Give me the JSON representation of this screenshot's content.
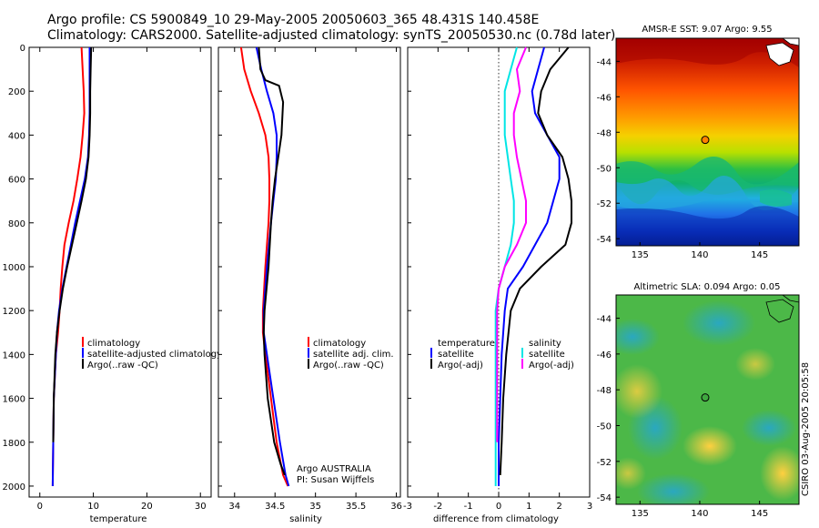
{
  "header": {
    "title1": "Argo profile: CS 5900849_10 29-May-2005 20050603_365 48.431S 140.458E",
    "title2": "Climatology: CARS2000. Satellite-adjusted climatology: synTS_20050530.nc (0.78d later)"
  },
  "credit": "CSIRO 03-Aug-2005 20:05:58",
  "chart_data": [
    {
      "type": "line",
      "id": "temperature",
      "xlabel": "temperature",
      "ylabel": "",
      "xlim": [
        -2,
        32
      ],
      "ylim": [
        2050,
        0
      ],
      "xticks": [
        0,
        10,
        20,
        30
      ],
      "yticks": [
        0,
        200,
        400,
        600,
        800,
        1000,
        1200,
        1400,
        1600,
        1800,
        2000
      ],
      "legend": [
        "climatology",
        "satellite-adjusted climatology",
        "Argo(..raw -QC)"
      ],
      "legend_position": "lower-right",
      "series": [
        {
          "name": "climatology",
          "color": "#ff0000",
          "x": [
            7.8,
            8.0,
            8.2,
            8.3,
            8.0,
            7.6,
            7.0,
            6.3,
            5.4,
            4.6,
            4.2,
            3.9,
            3.7,
            3.4,
            3.0,
            2.6,
            2.5,
            2.45,
            2.4
          ],
          "y": [
            0,
            100,
            200,
            300,
            400,
            500,
            600,
            700,
            800,
            900,
            1000,
            1100,
            1200,
            1300,
            1400,
            1600,
            1800,
            1900,
            2000
          ]
        },
        {
          "name": "satellite-adjusted climatology",
          "color": "#0000ff",
          "x": [
            9.3,
            9.3,
            9.3,
            9.3,
            9.2,
            9.0,
            8.4,
            7.5,
            6.6,
            5.8,
            5.0,
            4.2,
            3.6,
            3.2,
            3.0,
            2.6,
            2.5,
            2.45,
            2.4
          ],
          "y": [
            0,
            100,
            200,
            300,
            400,
            500,
            600,
            700,
            800,
            900,
            1000,
            1100,
            1200,
            1300,
            1400,
            1600,
            1800,
            1900,
            2000
          ]
        },
        {
          "name": "Argo(..raw -QC)",
          "color": "#000000",
          "x": [
            9.6,
            9.5,
            9.4,
            9.4,
            9.3,
            9.1,
            8.6,
            7.8,
            6.9,
            6.0,
            5.1,
            4.3,
            3.7,
            3.2,
            2.9,
            2.6,
            2.5
          ],
          "y": [
            0,
            100,
            200,
            300,
            400,
            500,
            600,
            700,
            800,
            900,
            1000,
            1100,
            1200,
            1300,
            1400,
            1600,
            1800
          ]
        }
      ]
    },
    {
      "type": "line",
      "id": "salinity",
      "xlabel": "salinity",
      "ylabel": "",
      "xlim": [
        33.8,
        36.05
      ],
      "ylim": [
        2050,
        0
      ],
      "xticks": [
        34,
        34.5,
        35,
        35.5,
        36
      ],
      "legend": [
        "climatology",
        "satellite adj. clim.",
        "Argo(..raw -QC)"
      ],
      "legend_position": "lower-right",
      "annotation": [
        "Argo AUSTRALIA",
        "PI: Susan Wijffels"
      ],
      "series": [
        {
          "name": "climatology",
          "color": "#ff0000",
          "x": [
            34.08,
            34.12,
            34.2,
            34.3,
            34.38,
            34.42,
            34.43,
            34.43,
            34.42,
            34.38,
            34.35,
            34.35,
            34.38,
            34.45,
            34.52,
            34.6,
            34.66
          ],
          "y": [
            0,
            100,
            200,
            300,
            400,
            500,
            600,
            700,
            800,
            1000,
            1200,
            1300,
            1400,
            1600,
            1800,
            1950,
            2000
          ]
        },
        {
          "name": "satellite adj. clim.",
          "color": "#0000ff",
          "x": [
            34.27,
            34.33,
            34.4,
            34.48,
            34.52,
            34.52,
            34.51,
            34.48,
            34.45,
            34.4,
            34.36,
            34.36,
            34.4,
            34.48,
            34.56,
            34.63,
            34.67
          ],
          "y": [
            0,
            100,
            200,
            300,
            400,
            500,
            600,
            700,
            800,
            1000,
            1200,
            1300,
            1400,
            1600,
            1800,
            1950,
            2000
          ]
        },
        {
          "name": "Argo(..raw -QC)",
          "color": "#000000",
          "x": [
            34.3,
            34.32,
            34.38,
            34.55,
            34.6,
            34.58,
            34.54,
            34.5,
            34.47,
            34.45,
            34.42,
            34.37,
            34.36,
            34.37,
            34.41,
            34.49,
            34.57,
            34.62
          ],
          "y": [
            0,
            100,
            150,
            175,
            250,
            400,
            500,
            600,
            700,
            800,
            1000,
            1200,
            1300,
            1400,
            1600,
            1800,
            1900,
            1950
          ]
        }
      ]
    },
    {
      "type": "line",
      "id": "difference",
      "xlabel": "difference from climatology",
      "ylabel": "",
      "xlim": [
        -3,
        3
      ],
      "ylim": [
        2050,
        0
      ],
      "xticks": [
        -3,
        -2,
        -1,
        0,
        1,
        2,
        3
      ],
      "legend_left_title": "temperature",
      "legend_left": [
        "satellite",
        "Argo(-adj)"
      ],
      "legend_right_title": "salinity",
      "legend_right": [
        "satellite",
        "Argo(-adj)"
      ],
      "series": [
        {
          "name": "satellite",
          "color": "#0000ff",
          "x": [
            1.5,
            1.3,
            1.1,
            1.2,
            1.6,
            2.0,
            2.0,
            1.8,
            1.6,
            1.2,
            0.8,
            0.3,
            0.2,
            0.1,
            0.05,
            0.0,
            0.0
          ],
          "y": [
            0,
            100,
            200,
            300,
            400,
            500,
            600,
            700,
            800,
            900,
            1000,
            1100,
            1200,
            1400,
            1600,
            1800,
            2000
          ]
        },
        {
          "name": "Argo(-adj)",
          "color": "#000000",
          "x": [
            2.3,
            1.7,
            1.4,
            1.3,
            1.6,
            2.1,
            2.3,
            2.4,
            2.4,
            2.2,
            1.4,
            0.7,
            0.4,
            0.25,
            0.15,
            0.1,
            0.05
          ],
          "y": [
            0,
            100,
            200,
            300,
            400,
            500,
            600,
            700,
            800,
            900,
            1000,
            1100,
            1200,
            1400,
            1600,
            1800,
            1950
          ]
        },
        {
          "name": "satellite",
          "color": "#00e5e5",
          "x": [
            0.6,
            0.4,
            0.2,
            0.2,
            0.2,
            0.3,
            0.4,
            0.5,
            0.5,
            0.4,
            0.2,
            0.0,
            -0.1,
            -0.1,
            -0.1,
            -0.1,
            -0.1
          ],
          "y": [
            0,
            100,
            200,
            300,
            400,
            500,
            600,
            700,
            800,
            900,
            1000,
            1100,
            1200,
            1400,
            1600,
            1800,
            2000
          ]
        },
        {
          "name": "Argo(-adj)",
          "color": "#ff00ff",
          "x": [
            0.9,
            0.6,
            0.7,
            0.5,
            0.5,
            0.6,
            0.75,
            0.9,
            0.9,
            0.6,
            0.2,
            0.0,
            -0.05,
            -0.05,
            -0.05,
            -0.05
          ],
          "y": [
            0,
            100,
            200,
            300,
            400,
            500,
            600,
            700,
            800,
            900,
            1000,
            1100,
            1200,
            1400,
            1600,
            1800
          ]
        }
      ]
    },
    {
      "type": "heatmap",
      "id": "sst-map",
      "title": "AMSR-E SST: 9.07 Argo: 9.55",
      "xlim": [
        133,
        148.3
      ],
      "ylim": [
        -54.4,
        -42.7
      ],
      "xticks": [
        135,
        140,
        145
      ],
      "yticks": [
        -44,
        -46,
        -48,
        -50,
        -52,
        -54
      ],
      "marker": {
        "lon": 140.458,
        "lat": -48.431,
        "color": "#ff8000"
      }
    },
    {
      "type": "heatmap",
      "id": "sla-map",
      "title": "Altimetric SLA: 0.094 Argo: 0.05",
      "xlim": [
        133,
        148.3
      ],
      "ylim": [
        -54.4,
        -42.7
      ],
      "xticks": [
        135,
        140,
        145
      ],
      "yticks": [
        -44,
        -46,
        -48,
        -50,
        -52,
        -54
      ],
      "marker": {
        "lon": 140.458,
        "lat": -48.431,
        "color": "#40a840"
      }
    }
  ]
}
